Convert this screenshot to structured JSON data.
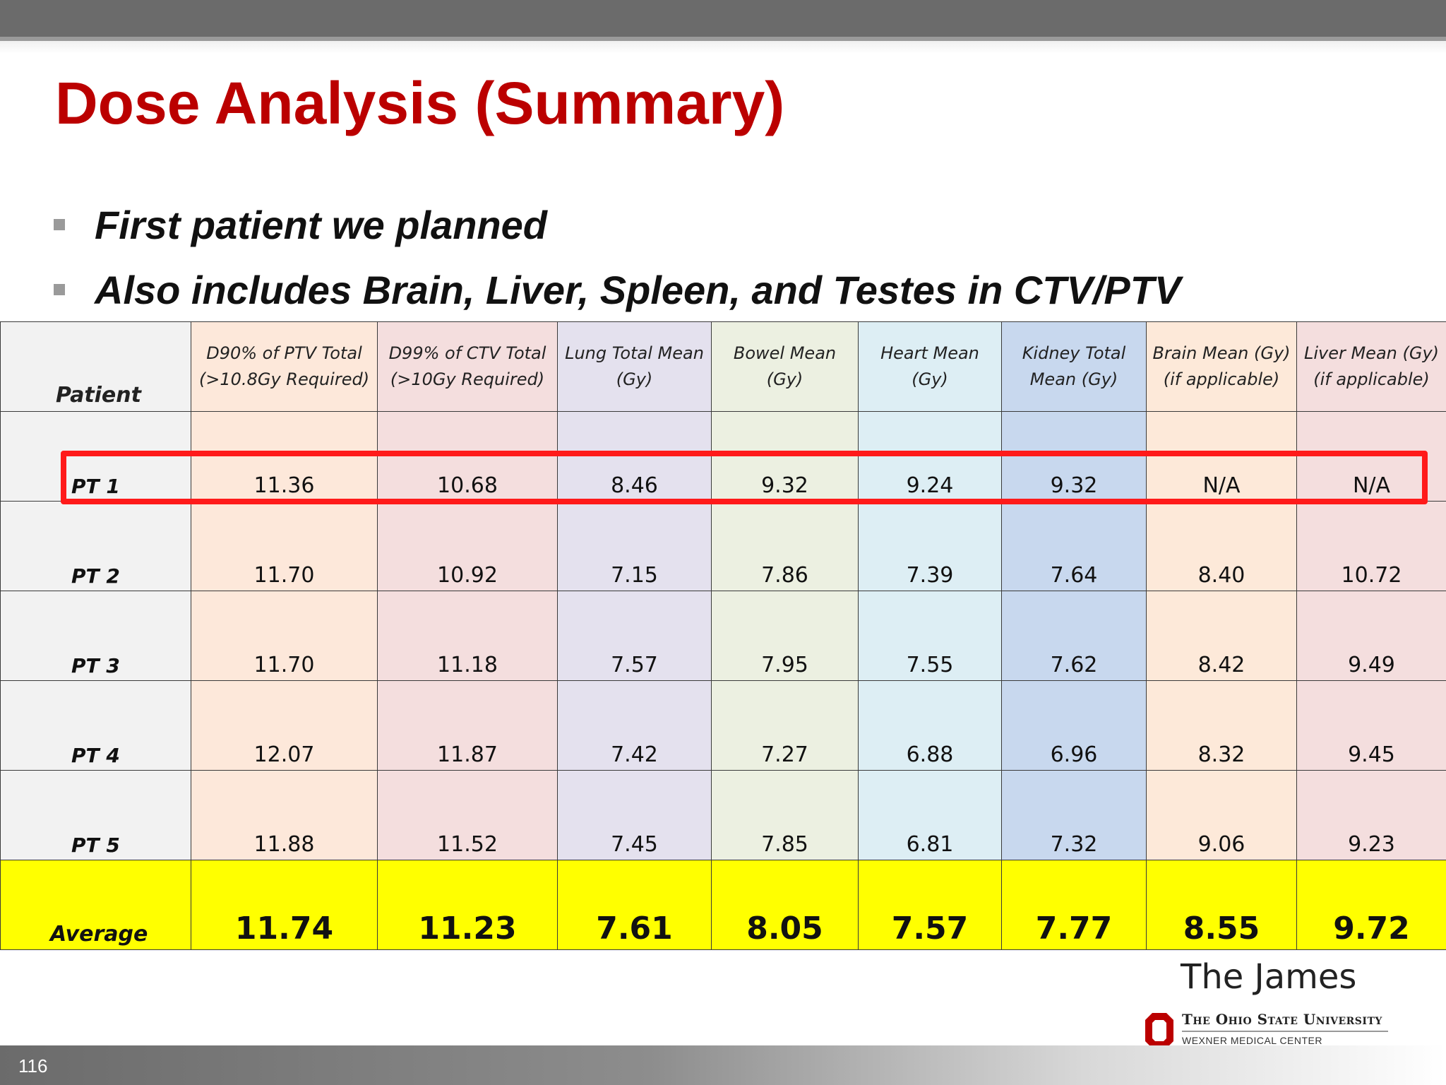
{
  "slide": {
    "title": "Dose Analysis (Summary)",
    "page_number": "116"
  },
  "bullets": [
    "First patient we planned",
    "Also includes Brain, Liver, Spleen, and Testes in CTV/PTV"
  ],
  "table": {
    "headers": [
      {
        "line1": "Patient",
        "line2": ""
      },
      {
        "line1": "D90% of PTV Total",
        "line2": "(>10.8Gy Required)"
      },
      {
        "line1": "D99% of CTV Total",
        "line2": "(>10Gy Required)"
      },
      {
        "line1": "Lung Total Mean",
        "line2": "(Gy)"
      },
      {
        "line1": "Bowel Mean",
        "line2": "(Gy)"
      },
      {
        "line1": "Heart Mean",
        "line2": "(Gy)"
      },
      {
        "line1": "Kidney Total",
        "line2": "Mean (Gy)"
      },
      {
        "line1": "Brain Mean  (Gy)",
        "line2": "(if applicable)"
      },
      {
        "line1": "Liver Mean (Gy)",
        "line2": "(if applicable)"
      }
    ],
    "rows": [
      [
        "PT 1",
        "11.36",
        "10.68",
        "8.46",
        "9.32",
        "9.24",
        "9.32",
        "N/A",
        "N/A"
      ],
      [
        "PT 2",
        "11.70",
        "10.92",
        "7.15",
        "7.86",
        "7.39",
        "7.64",
        "8.40",
        "10.72"
      ],
      [
        "PT 3",
        "11.70",
        "11.18",
        "7.57",
        "7.95",
        "7.55",
        "7.62",
        "8.42",
        "9.49"
      ],
      [
        "PT 4",
        "12.07",
        "11.87",
        "7.42",
        "7.27",
        "6.88",
        "6.96",
        "8.32",
        "9.45"
      ],
      [
        "PT 5",
        "11.88",
        "11.52",
        "7.45",
        "7.85",
        "6.81",
        "7.32",
        "9.06",
        "9.23"
      ]
    ],
    "average": [
      "Average",
      "11.74",
      "11.23",
      "7.61",
      "8.05",
      "7.57",
      "7.77",
      "8.55",
      "9.72"
    ],
    "highlighted_row": "PT 1",
    "highlight_color": "#ff1a1a",
    "average_color": "#ffff00"
  },
  "logo": {
    "title": "The James",
    "university": "The Ohio State University",
    "center": "WEXNER MEDICAL CENTER",
    "block_color": "#bb0000"
  },
  "colors": {
    "title": "#bb0000"
  }
}
